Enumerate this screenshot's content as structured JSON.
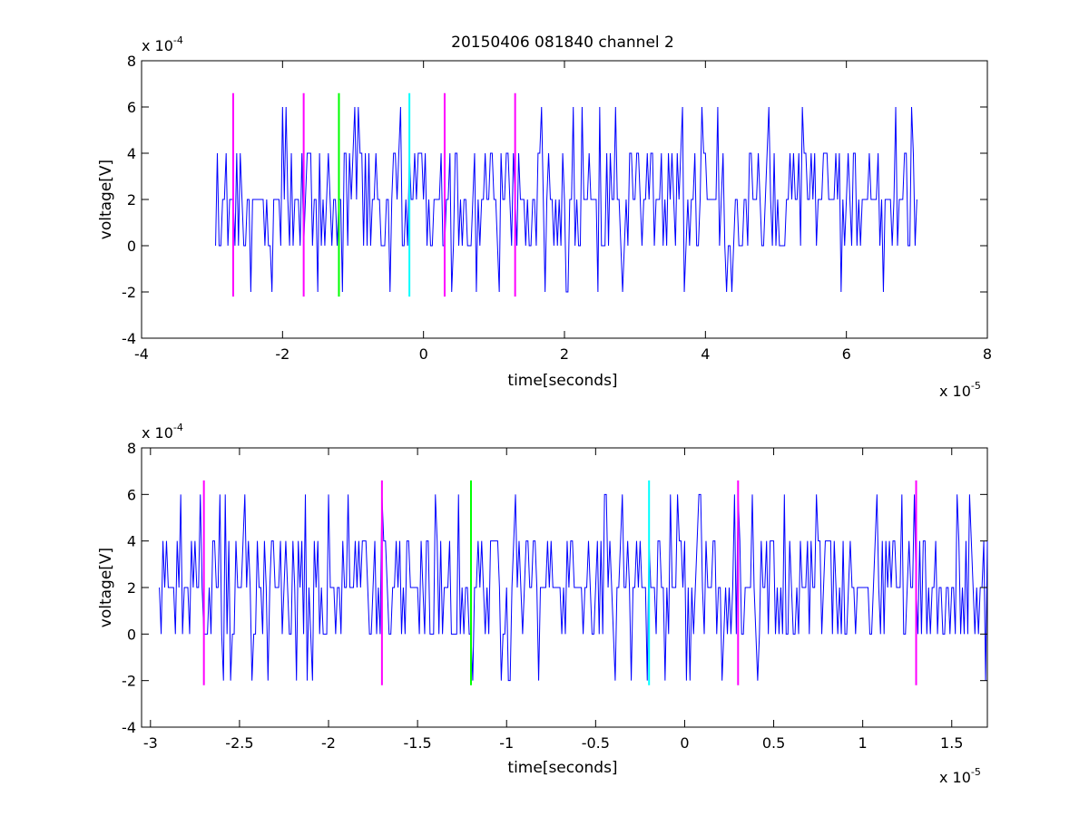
{
  "figure_title": "20150406 081840 channel 2",
  "colors": {
    "trace": "#0000ff",
    "magenta": "#ff00ff",
    "green": "#00ff00",
    "cyan": "#00ffff",
    "axes": "#000000",
    "background": "#ffffff"
  },
  "chart_data": [
    {
      "type": "line",
      "title": "20150406 081840 channel 2",
      "xlabel": "time[seconds]",
      "ylabel": "voltage[V]",
      "x_multiplier": "x 10",
      "x_exponent": "-5",
      "y_multiplier": "x 10",
      "y_exponent": "-4",
      "xlim": [
        -4,
        8
      ],
      "ylim": [
        -4,
        8
      ],
      "xticks": [
        "-4",
        "-2",
        "0",
        "2",
        "4",
        "6",
        "8"
      ],
      "yticks": [
        "-4",
        "-2",
        "0",
        "2",
        "4",
        "6",
        "8"
      ],
      "grid": false,
      "trace": {
        "x_start": -2.95,
        "x_end": 7.0,
        "sample_step": 0.025,
        "levels": [
          -2,
          0,
          2,
          4,
          6
        ],
        "note_values": "quantized voltage samples (x 10^-4 V)"
      },
      "markers": [
        {
          "x": -2.7,
          "color": "magenta",
          "y_range": [
            -2.2,
            6.6
          ]
        },
        {
          "x": -1.7,
          "color": "magenta",
          "y_range": [
            -2.2,
            6.6
          ]
        },
        {
          "x": -1.2,
          "color": "green",
          "y_range": [
            -2.2,
            6.6
          ]
        },
        {
          "x": -0.2,
          "color": "cyan",
          "y_range": [
            -2.2,
            6.6
          ]
        },
        {
          "x": 0.3,
          "color": "magenta",
          "y_range": [
            -2.2,
            6.6
          ]
        },
        {
          "x": 1.3,
          "color": "magenta",
          "y_range": [
            -2.2,
            6.6
          ]
        }
      ]
    },
    {
      "type": "line",
      "title": "",
      "xlabel": "time[seconds]",
      "ylabel": "voltage[V]",
      "x_multiplier": "x 10",
      "x_exponent": "-5",
      "y_multiplier": "x 10",
      "y_exponent": "-4",
      "xlim": [
        -3.05,
        1.7
      ],
      "ylim": [
        -4,
        8
      ],
      "xticks": [
        "-3",
        "-2.5",
        "-2",
        "-1.5",
        "-1",
        "-0.5",
        "0",
        "0.5",
        "1",
        "1.5"
      ],
      "xtick_values": [
        -3,
        -2.5,
        -2,
        -1.5,
        -1,
        -0.5,
        0,
        0.5,
        1,
        1.5
      ],
      "yticks": [
        "-4",
        "-2",
        "0",
        "2",
        "4",
        "6",
        "8"
      ],
      "grid": false,
      "trace": {
        "x_start": -2.95,
        "x_end": 1.7,
        "sample_step": 0.01,
        "levels": [
          -2,
          0,
          2,
          4,
          6
        ]
      },
      "markers": [
        {
          "x": -2.7,
          "color": "magenta",
          "y_range": [
            -2.2,
            6.6
          ]
        },
        {
          "x": -1.7,
          "color": "magenta",
          "y_range": [
            -2.2,
            6.6
          ]
        },
        {
          "x": -1.2,
          "color": "green",
          "y_range": [
            -2.2,
            6.6
          ]
        },
        {
          "x": -0.2,
          "color": "cyan",
          "y_range": [
            -2.2,
            6.6
          ]
        },
        {
          "x": 0.3,
          "color": "magenta",
          "y_range": [
            -2.2,
            6.6
          ]
        },
        {
          "x": 1.3,
          "color": "magenta",
          "y_range": [
            -2.2,
            6.6
          ]
        }
      ]
    }
  ]
}
